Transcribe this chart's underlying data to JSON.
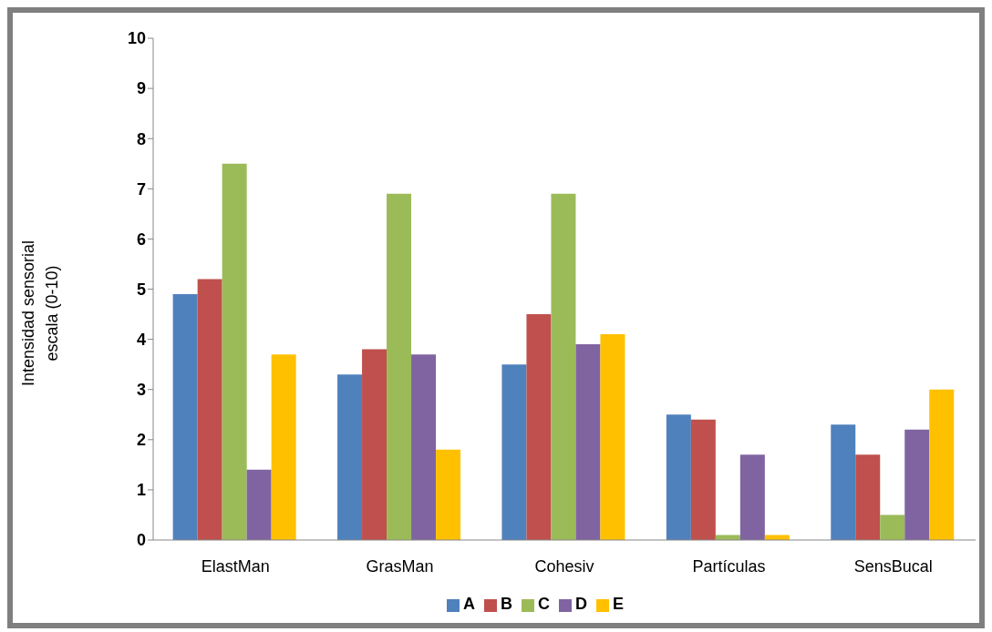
{
  "chart_data": {
    "type": "bar",
    "ylabel": "Intensidad sensorial\nescala  (0-10)",
    "categories": [
      "ElastMan",
      "GrasMan",
      "Cohesiv",
      "Partículas",
      "SensBucal"
    ],
    "series": [
      {
        "name": "A",
        "color": "#4f81bd",
        "values": [
          4.9,
          3.3,
          3.5,
          2.5,
          2.3
        ]
      },
      {
        "name": "B",
        "color": "#c0504d",
        "values": [
          5.2,
          3.8,
          4.5,
          2.4,
          1.7
        ]
      },
      {
        "name": "C",
        "color": "#9bbb59",
        "values": [
          7.5,
          6.9,
          6.9,
          0.1,
          0.5
        ]
      },
      {
        "name": "D",
        "color": "#8064a2",
        "values": [
          1.4,
          3.7,
          3.9,
          1.7,
          2.2
        ]
      },
      {
        "name": "E",
        "color": "#ffc000",
        "values": [
          3.7,
          1.8,
          4.1,
          0.1,
          3.0
        ]
      }
    ],
    "ylim": [
      0,
      10
    ],
    "yticks": [
      0,
      1,
      2,
      3,
      4,
      5,
      6,
      7,
      8,
      9,
      10
    ],
    "grid": false,
    "legend": "bottom"
  }
}
